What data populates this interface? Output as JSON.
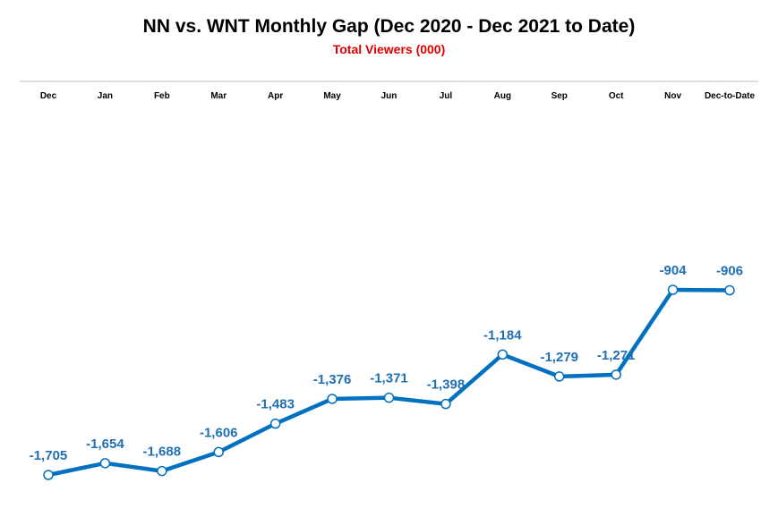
{
  "chart_data": {
    "type": "line",
    "title": "NN vs. WNT Monthly Gap (Dec 2020 - Dec 2021 to Date)",
    "subtitle": "Total Viewers (000)",
    "categories": [
      "Dec",
      "Jan",
      "Feb",
      "Mar",
      "Apr",
      "May",
      "Jun",
      "Jul",
      "Aug",
      "Sep",
      "Oct",
      "Nov",
      "Dec-to-Date"
    ],
    "series": [
      {
        "values": [
          -1705,
          -1654,
          -1688,
          -1606,
          -1483,
          -1376,
          -1371,
          -1398,
          -1184,
          -1279,
          -1271,
          -904,
          -906
        ],
        "labels": [
          "-1,705",
          "-1,654",
          "-1,688",
          "-1,606",
          "-1,483",
          "-1,376",
          "-1,371",
          "-1,398",
          "-1,184",
          "-1,279",
          "-1,271",
          "-904",
          "-906"
        ],
        "color": "#0070c0"
      }
    ],
    "x_axis_position": "top",
    "grid": false
  }
}
